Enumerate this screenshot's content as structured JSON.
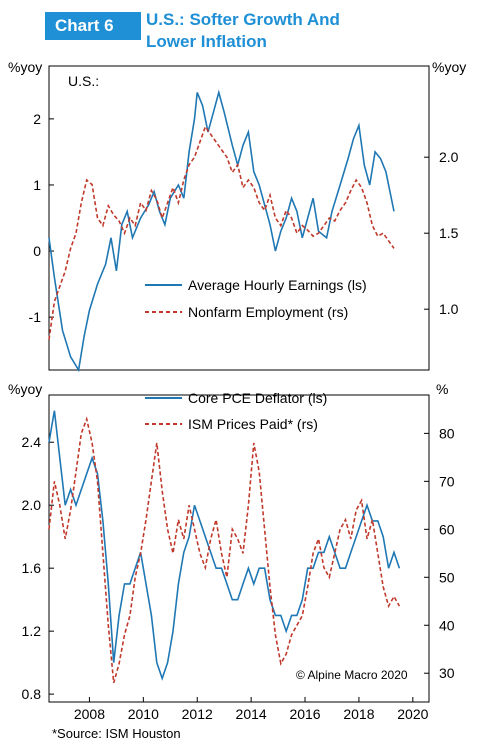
{
  "header": {
    "badge": "Chart 6",
    "title": "U.S.: Softer Growth And\nLower Inflation"
  },
  "source": "*Source: ISM Houston",
  "colors": {
    "blue": "#1f78b4",
    "red": "#c0392b",
    "accent": "#1f8fd6"
  },
  "chart_data": [
    {
      "type": "line",
      "panel_label": "U.S.:",
      "left_unit": "%yoy",
      "right_unit": "%yoy",
      "left_ticks": [
        "2",
        "1",
        "0",
        "-1"
      ],
      "right_ticks": [
        "2.0",
        "1.5",
        "1.0"
      ],
      "ylim_left": [
        -1.8,
        2.8
      ],
      "ylim_right": [
        0.6,
        2.6
      ],
      "series": [
        {
          "name": "Average Hourly Earnings (ls)",
          "axis": "left",
          "style": "solid",
          "x": [
            2006.5,
            2006.7,
            2007.0,
            2007.3,
            2007.6,
            2007.8,
            2008.0,
            2008.3,
            2008.6,
            2008.8,
            2009.0,
            2009.2,
            2009.4,
            2009.6,
            2009.9,
            2010.2,
            2010.4,
            2010.6,
            2010.8,
            2011.0,
            2011.3,
            2011.5,
            2011.7,
            2011.9,
            2012.0,
            2012.2,
            2012.4,
            2012.6,
            2012.8,
            2013.0,
            2013.3,
            2013.5,
            2013.7,
            2013.9,
            2014.1,
            2014.3,
            2014.5,
            2014.7,
            2014.9,
            2015.1,
            2015.3,
            2015.5,
            2015.7,
            2015.9,
            2016.1,
            2016.3,
            2016.5,
            2016.8,
            2017.0,
            2017.3,
            2017.6,
            2017.8,
            2018.0,
            2018.2,
            2018.4,
            2018.6,
            2018.8,
            2019.0,
            2019.3
          ],
          "y": [
            0.2,
            -0.4,
            -1.2,
            -1.6,
            -1.8,
            -1.3,
            -0.9,
            -0.5,
            -0.2,
            0.2,
            -0.3,
            0.4,
            0.6,
            0.2,
            0.5,
            0.7,
            0.9,
            0.6,
            0.4,
            0.8,
            1.0,
            0.8,
            1.5,
            2.0,
            2.4,
            2.2,
            1.8,
            2.1,
            2.4,
            2.1,
            1.6,
            1.3,
            1.6,
            1.8,
            1.2,
            1.0,
            0.7,
            0.4,
            0.0,
            0.3,
            0.5,
            0.8,
            0.6,
            0.2,
            0.5,
            0.8,
            0.3,
            0.2,
            0.6,
            1.0,
            1.4,
            1.7,
            1.9,
            1.3,
            1.0,
            1.5,
            1.4,
            1.2,
            0.6
          ]
        },
        {
          "name": "Nonfarm Employment (rs)",
          "axis": "right",
          "style": "dashed",
          "x": [
            2006.5,
            2006.7,
            2006.9,
            2007.1,
            2007.3,
            2007.5,
            2007.7,
            2007.9,
            2008.1,
            2008.3,
            2008.5,
            2008.7,
            2008.9,
            2009.1,
            2009.3,
            2009.5,
            2009.7,
            2009.9,
            2010.1,
            2010.3,
            2010.5,
            2010.7,
            2010.9,
            2011.1,
            2011.3,
            2011.5,
            2011.7,
            2011.9,
            2012.1,
            2012.3,
            2012.5,
            2012.7,
            2012.9,
            2013.1,
            2013.3,
            2013.5,
            2013.7,
            2013.9,
            2014.1,
            2014.3,
            2014.5,
            2014.7,
            2014.9,
            2015.1,
            2015.3,
            2015.5,
            2015.7,
            2015.9,
            2016.1,
            2016.3,
            2016.5,
            2016.7,
            2016.9,
            2017.1,
            2017.3,
            2017.5,
            2017.7,
            2017.9,
            2018.1,
            2018.3,
            2018.5,
            2018.7,
            2018.9,
            2019.1,
            2019.3
          ],
          "y": [
            0.8,
            1.05,
            1.15,
            1.25,
            1.4,
            1.5,
            1.7,
            1.85,
            1.82,
            1.6,
            1.55,
            1.68,
            1.62,
            1.58,
            1.5,
            1.6,
            1.55,
            1.7,
            1.65,
            1.78,
            1.72,
            1.6,
            1.7,
            1.8,
            1.7,
            1.85,
            1.95,
            2.0,
            2.1,
            2.2,
            2.15,
            2.1,
            2.05,
            2.0,
            1.9,
            1.95,
            1.8,
            1.85,
            1.8,
            1.7,
            1.65,
            1.75,
            1.6,
            1.55,
            1.65,
            1.6,
            1.5,
            1.55,
            1.52,
            1.48,
            1.5,
            1.55,
            1.6,
            1.58,
            1.65,
            1.7,
            1.78,
            1.85,
            1.8,
            1.7,
            1.55,
            1.48,
            1.5,
            1.45,
            1.4
          ]
        }
      ]
    },
    {
      "type": "line",
      "left_unit": "%yoy",
      "right_unit": "%",
      "left_ticks": [
        "2.4",
        "2.0",
        "1.6",
        "1.2",
        "0.8"
      ],
      "right_ticks": [
        "80",
        "70",
        "60",
        "50",
        "40",
        "30"
      ],
      "x_ticks": [
        "2008",
        "2010",
        "2012",
        "2014",
        "2016",
        "2018",
        "2020"
      ],
      "ylim_left": [
        0.75,
        2.7
      ],
      "ylim_right": [
        24,
        88
      ],
      "copyright": "© Alpine Macro 2020",
      "series": [
        {
          "name": "Core PCE Deflator (ls)",
          "axis": "left",
          "style": "solid",
          "x": [
            2006.5,
            2006.7,
            2006.9,
            2007.1,
            2007.3,
            2007.5,
            2007.7,
            2007.9,
            2008.1,
            2008.3,
            2008.5,
            2008.7,
            2008.9,
            2009.1,
            2009.3,
            2009.5,
            2009.7,
            2009.9,
            2010.1,
            2010.3,
            2010.5,
            2010.7,
            2010.9,
            2011.1,
            2011.3,
            2011.5,
            2011.7,
            2011.9,
            2012.1,
            2012.3,
            2012.5,
            2012.7,
            2012.9,
            2013.1,
            2013.3,
            2013.5,
            2013.7,
            2013.9,
            2014.1,
            2014.3,
            2014.5,
            2014.7,
            2014.9,
            2015.1,
            2015.3,
            2015.5,
            2015.7,
            2015.9,
            2016.1,
            2016.3,
            2016.5,
            2016.7,
            2016.9,
            2017.1,
            2017.3,
            2017.5,
            2017.7,
            2017.9,
            2018.1,
            2018.3,
            2018.5,
            2018.7,
            2018.9,
            2019.1,
            2019.3,
            2019.5
          ],
          "y": [
            2.4,
            2.6,
            2.3,
            2.0,
            2.1,
            2.0,
            2.1,
            2.2,
            2.3,
            2.2,
            1.9,
            1.5,
            1.0,
            1.3,
            1.5,
            1.5,
            1.6,
            1.7,
            1.5,
            1.3,
            1.0,
            0.9,
            1.0,
            1.2,
            1.5,
            1.7,
            1.8,
            2.0,
            1.9,
            1.8,
            1.7,
            1.6,
            1.6,
            1.5,
            1.4,
            1.4,
            1.5,
            1.6,
            1.5,
            1.6,
            1.6,
            1.4,
            1.3,
            1.3,
            1.2,
            1.3,
            1.3,
            1.4,
            1.6,
            1.6,
            1.7,
            1.7,
            1.8,
            1.7,
            1.6,
            1.6,
            1.7,
            1.8,
            1.9,
            2.0,
            1.9,
            1.9,
            1.8,
            1.6,
            1.7,
            1.6
          ]
        },
        {
          "name": "ISM Prices Paid* (rs)",
          "axis": "right",
          "style": "dashed",
          "x": [
            2006.5,
            2006.7,
            2006.9,
            2007.1,
            2007.3,
            2007.5,
            2007.7,
            2007.9,
            2008.1,
            2008.3,
            2008.5,
            2008.7,
            2008.9,
            2009.1,
            2009.3,
            2009.5,
            2009.7,
            2009.9,
            2010.1,
            2010.3,
            2010.5,
            2010.7,
            2010.9,
            2011.1,
            2011.3,
            2011.5,
            2011.7,
            2011.9,
            2012.1,
            2012.3,
            2012.5,
            2012.7,
            2012.9,
            2013.1,
            2013.3,
            2013.5,
            2013.7,
            2013.9,
            2014.1,
            2014.3,
            2014.5,
            2014.7,
            2014.9,
            2015.1,
            2015.3,
            2015.5,
            2015.7,
            2015.9,
            2016.1,
            2016.3,
            2016.5,
            2016.7,
            2016.9,
            2017.1,
            2017.3,
            2017.5,
            2017.7,
            2017.9,
            2018.1,
            2018.3,
            2018.5,
            2018.7,
            2018.9,
            2019.1,
            2019.3,
            2019.5
          ],
          "y": [
            60,
            70,
            65,
            58,
            64,
            72,
            80,
            83,
            78,
            70,
            55,
            40,
            28,
            32,
            38,
            42,
            50,
            55,
            62,
            70,
            78,
            68,
            60,
            55,
            62,
            58,
            65,
            60,
            55,
            52,
            58,
            62,
            55,
            50,
            60,
            58,
            55,
            65,
            78,
            72,
            60,
            48,
            38,
            32,
            34,
            38,
            40,
            42,
            48,
            55,
            58,
            52,
            50,
            55,
            60,
            62,
            58,
            64,
            66,
            58,
            62,
            55,
            48,
            44,
            46,
            44
          ]
        }
      ]
    }
  ]
}
